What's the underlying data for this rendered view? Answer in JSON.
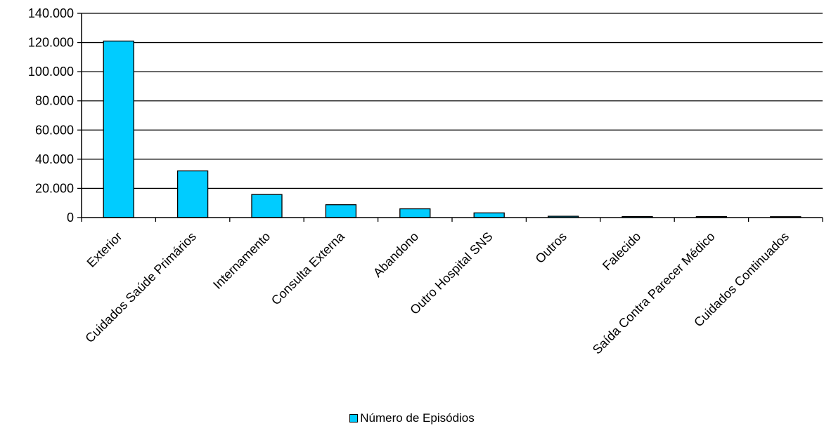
{
  "chart_data": {
    "type": "bar",
    "title": "",
    "xlabel": "",
    "ylabel": "",
    "categories": [
      "Exterior",
      "Cuidados Saúde Primários",
      "Internamento",
      "Consulta Externa",
      "Abandono",
      "Outro Hospital SNS",
      "Outros",
      "Falecido",
      "Saída Contra Parecer Médico",
      "Cuidados Continuados"
    ],
    "series": [
      {
        "name": "Número de Episódios",
        "color": "#00CCFF",
        "values": [
          121000,
          32000,
          15800,
          8800,
          6000,
          3200,
          900,
          700,
          650,
          600
        ]
      }
    ],
    "ylim": [
      0,
      140000
    ],
    "yticks": [
      0,
      20000,
      40000,
      60000,
      80000,
      100000,
      120000,
      140000
    ],
    "ytick_labels": [
      "0",
      "20.000",
      "40.000",
      "60.000",
      "80.000",
      "100.000",
      "120.000",
      "140.000"
    ],
    "grid": true,
    "legend_position": "bottom"
  }
}
